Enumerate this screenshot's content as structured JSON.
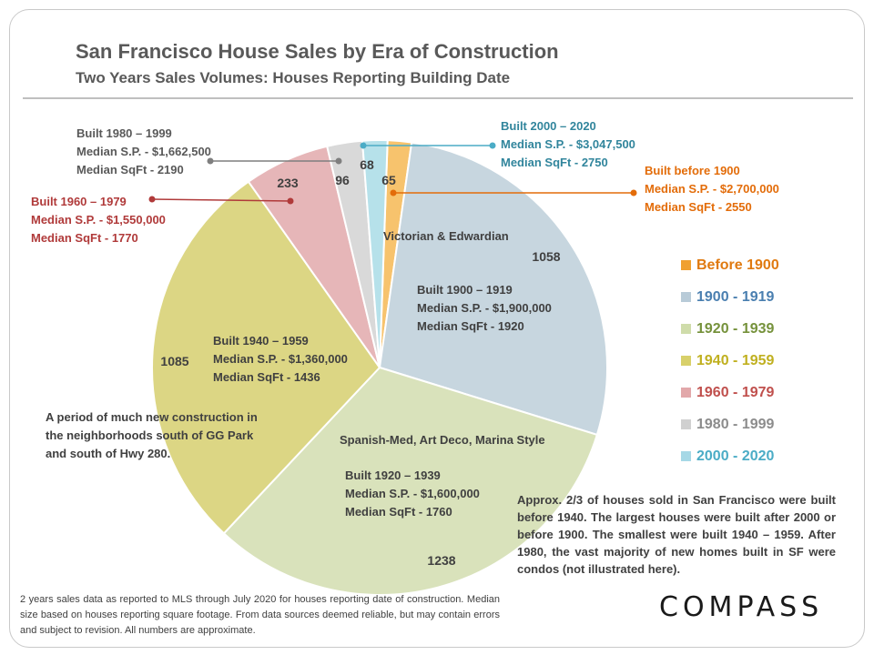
{
  "title": "San Francisco House Sales by Era of Construction",
  "subtitle": "Two Years Sales Volumes: Houses Reporting Building Date",
  "chart_data": {
    "type": "pie",
    "title": "San Francisco House Sales by Era of Construction",
    "subtitle": "Two Years Sales Volumes: Houses Reporting Building Date",
    "legend_position": "right",
    "slices": [
      {
        "label": "Before 1900",
        "value": 65,
        "color": "#f7c36d"
      },
      {
        "label": "1900 - 1919",
        "value": 1058,
        "color": "#c7d6df"
      },
      {
        "label": "1920 - 1939",
        "value": 1238,
        "color": "#d9e2bb"
      },
      {
        "label": "1940 - 1959",
        "value": 1085,
        "color": "#dcd684"
      },
      {
        "label": "1960 - 1979",
        "value": 233,
        "color": "#e6b6b8"
      },
      {
        "label": "1980 - 1999",
        "value": 96,
        "color": "#d9d9d9"
      },
      {
        "label": "2000 - 2020",
        "value": 68,
        "color": "#b6e1ea"
      }
    ]
  },
  "legend": [
    {
      "label": "Before 1900",
      "color": "#f0a030",
      "text_color": "#e07a10"
    },
    {
      "label": "1900 - 1919",
      "color": "#b8cbd8",
      "text_color": "#4a7fb0"
    },
    {
      "label": "1920 - 1939",
      "color": "#cfdcaa",
      "text_color": "#76923c"
    },
    {
      "label": "1940 - 1959",
      "color": "#d8d06a",
      "text_color": "#c0b020"
    },
    {
      "label": "1960 - 1979",
      "color": "#e2a8aa",
      "text_color": "#c0504d"
    },
    {
      "label": "1980 - 1999",
      "color": "#d0d0d0",
      "text_color": "#8c8c8c"
    },
    {
      "label": "2000 - 2020",
      "color": "#a6d8e6",
      "text_color": "#4bacc6"
    }
  ],
  "annotations": {
    "era1900": {
      "line1": "Victorian & Edwardian",
      "line2": "Built 1900 – 1919",
      "line3": "Median S.P. - $1,900,000",
      "line4": "Median SqFt - 1920"
    },
    "era1920": {
      "line1": "Spanish-Med, Art Deco, Marina Style",
      "line2": "Built 1920 – 1939",
      "line3": "Median S.P. - $1,600,000",
      "line4": "Median SqFt - 1760"
    },
    "era1940": {
      "line1": "Built 1940 – 1959",
      "line2": "Median S.P. - $1,360,000",
      "line3": "Median SqFt - 1436"
    },
    "era1940_note": "A period of much new construction in the neighborhoods south of GG Park and south of Hwy 280.",
    "era1980": {
      "line1": "Built 1980 – 1999",
      "line2": "Median S.P. - $1,662,500",
      "line3": "Median SqFt - 2190"
    },
    "era1960": {
      "line1": "Built 1960 – 1979",
      "line2": "Median S.P. - $1,550,000",
      "line3": "Median SqFt - 1770"
    },
    "era2000": {
      "line1": "Built 2000 – 2020",
      "line2": "Median S.P. - $3,047,500",
      "line3": "Median SqFt - 2750"
    },
    "eraBefore1900": {
      "line1": "Built before 1900",
      "line2": "Median S.P. - $2,700,000",
      "line3": "Median SqFt - 2550"
    }
  },
  "colors": {
    "era1980_text": "#595959",
    "era1960_text": "#b03a3a",
    "era2000_text": "#31859c",
    "eraBefore1900_text": "#e36c09",
    "dark_text": "#404040"
  },
  "summary": "Approx. 2/3 of houses sold in San Francisco were built before 1940. The largest houses were built after 2000 or before 1900. The smallest were built 1940 – 1959. After 1980, the vast majority of new homes built in SF were condos (not illustrated here).",
  "footer": "2 years sales data as reported to MLS through July 2020 for houses reporting date of construction. Median size  based on houses reporting square footage. From data sources deemed reliable, but may contain errors and subject to revision. All numbers are approximate.",
  "logo": "COMPASS"
}
